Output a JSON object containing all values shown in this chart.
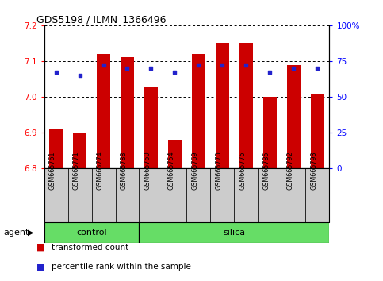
{
  "title": "GDS5198 / ILMN_1366496",
  "samples": [
    "GSM665761",
    "GSM665771",
    "GSM665774",
    "GSM665788",
    "GSM665750",
    "GSM665754",
    "GSM665769",
    "GSM665770",
    "GSM665775",
    "GSM665785",
    "GSM665792",
    "GSM665793"
  ],
  "n_control": 4,
  "transformed_count": [
    6.91,
    6.9,
    7.12,
    7.11,
    7.03,
    6.88,
    7.12,
    7.15,
    7.15,
    7.0,
    7.09,
    7.01
  ],
  "percentile_rank_pct": [
    67,
    65,
    72,
    70,
    70,
    67,
    72,
    72,
    72,
    67,
    70,
    70
  ],
  "ylim_left": [
    6.8,
    7.2
  ],
  "ylim_right": [
    0,
    100
  ],
  "yticks_left": [
    6.8,
    6.9,
    7.0,
    7.1,
    7.2
  ],
  "yticks_right": [
    0,
    25,
    50,
    75,
    100
  ],
  "ytick_labels_right": [
    "0",
    "25",
    "50",
    "75",
    "100%"
  ],
  "bar_color": "#cc0000",
  "dot_color": "#2222cc",
  "bar_bottom": 6.8,
  "group_color": "#66dd66",
  "group_label_control": "control",
  "group_label_silica": "silica",
  "agent_label": "agent",
  "legend_bar_label": "transformed count",
  "legend_dot_label": "percentile rank within the sample",
  "tick_area_color": "#cccccc"
}
